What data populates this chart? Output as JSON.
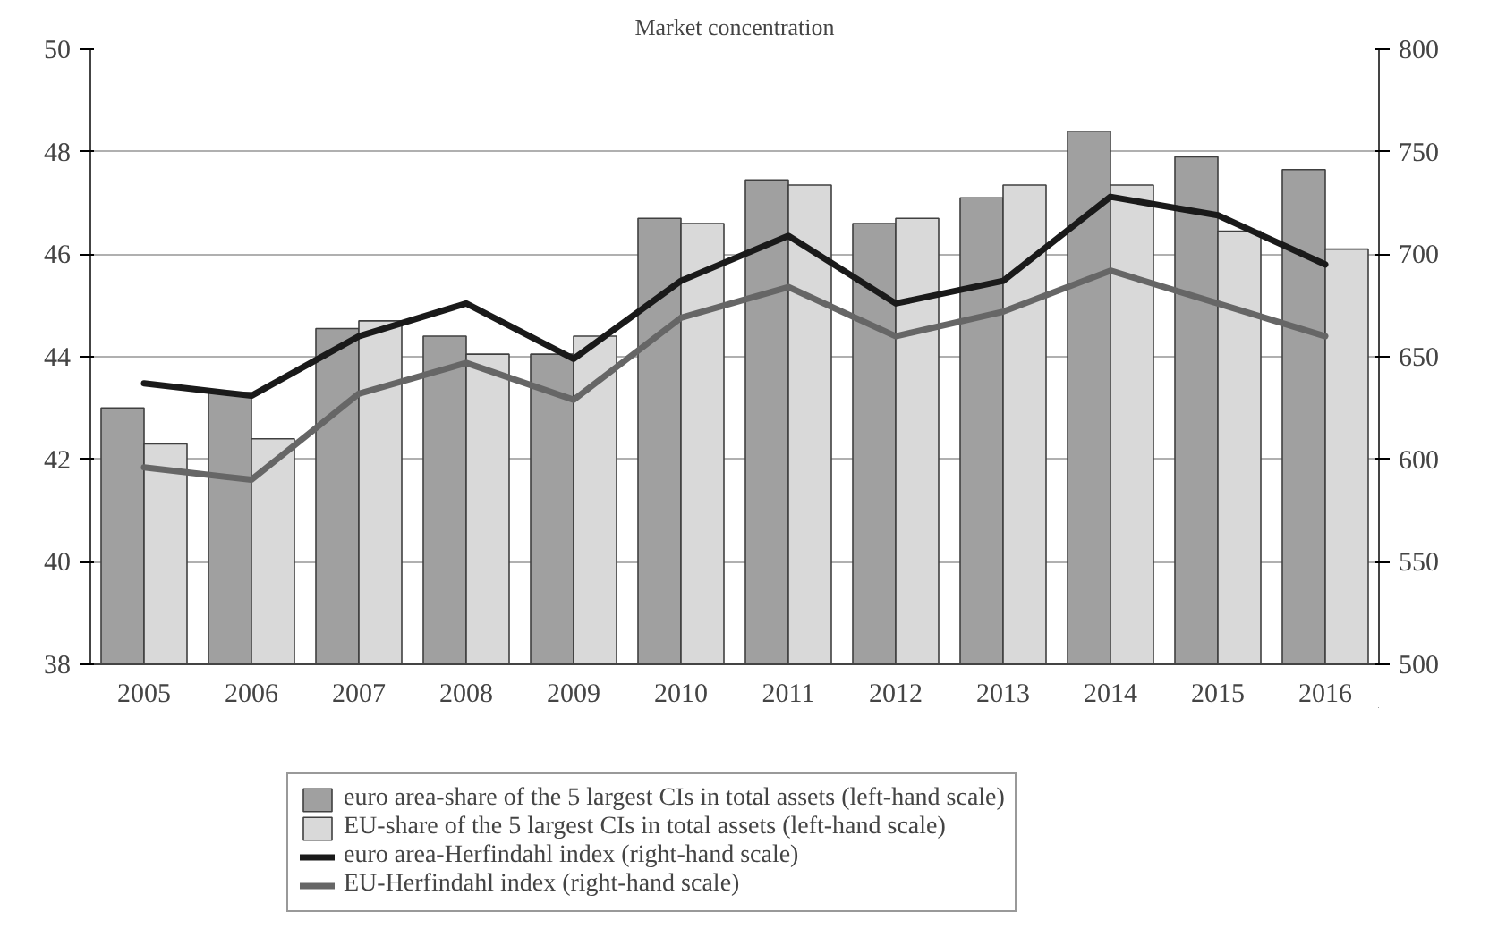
{
  "chart_data": {
    "type": "bar",
    "title": "Market concentration",
    "categories": [
      "2005",
      "2006",
      "2007",
      "2008",
      "2009",
      "2010",
      "2011",
      "2012",
      "2013",
      "2014",
      "2015",
      "2016"
    ],
    "series": [
      {
        "name": "euro area-share of the 5 largest CIs in total assets (left-hand scale)",
        "color": "#a0a0a0",
        "values": [
          43.0,
          43.3,
          44.55,
          44.4,
          44.05,
          46.7,
          47.45,
          46.6,
          47.1,
          48.4,
          47.9,
          47.65
        ]
      },
      {
        "name": "EU-share of the 5 largest CIs in total assets (left-hand scale)",
        "color": "#d9d9d9",
        "values": [
          42.3,
          42.4,
          44.7,
          44.05,
          44.4,
          46.6,
          47.35,
          46.7,
          47.35,
          47.35,
          46.45,
          46.1
        ]
      },
      {
        "name": "euro area-Herfindahl index (right-hand scale)",
        "type": "line",
        "axis": "y2",
        "color": "#1a1a1a",
        "values": [
          637,
          631,
          660,
          676,
          649,
          687,
          709,
          676,
          687,
          728,
          719,
          695
        ]
      },
      {
        "name": "EU-Herfindahl index (right-hand scale)",
        "type": "line",
        "axis": "y2",
        "color": "#666666",
        "values": [
          596,
          590,
          632,
          647,
          629,
          669,
          684,
          660,
          672,
          692,
          676,
          660
        ]
      }
    ],
    "ylim": [
      38,
      50
    ],
    "yticks": [
      38,
      40,
      42,
      44,
      46,
      48,
      50
    ],
    "y2lim": [
      500,
      800
    ],
    "y2ticks": [
      500,
      550,
      600,
      650,
      700,
      750,
      800
    ],
    "grid": "y",
    "legend": "bottom",
    "marker": "none",
    "line_style": "solid"
  }
}
